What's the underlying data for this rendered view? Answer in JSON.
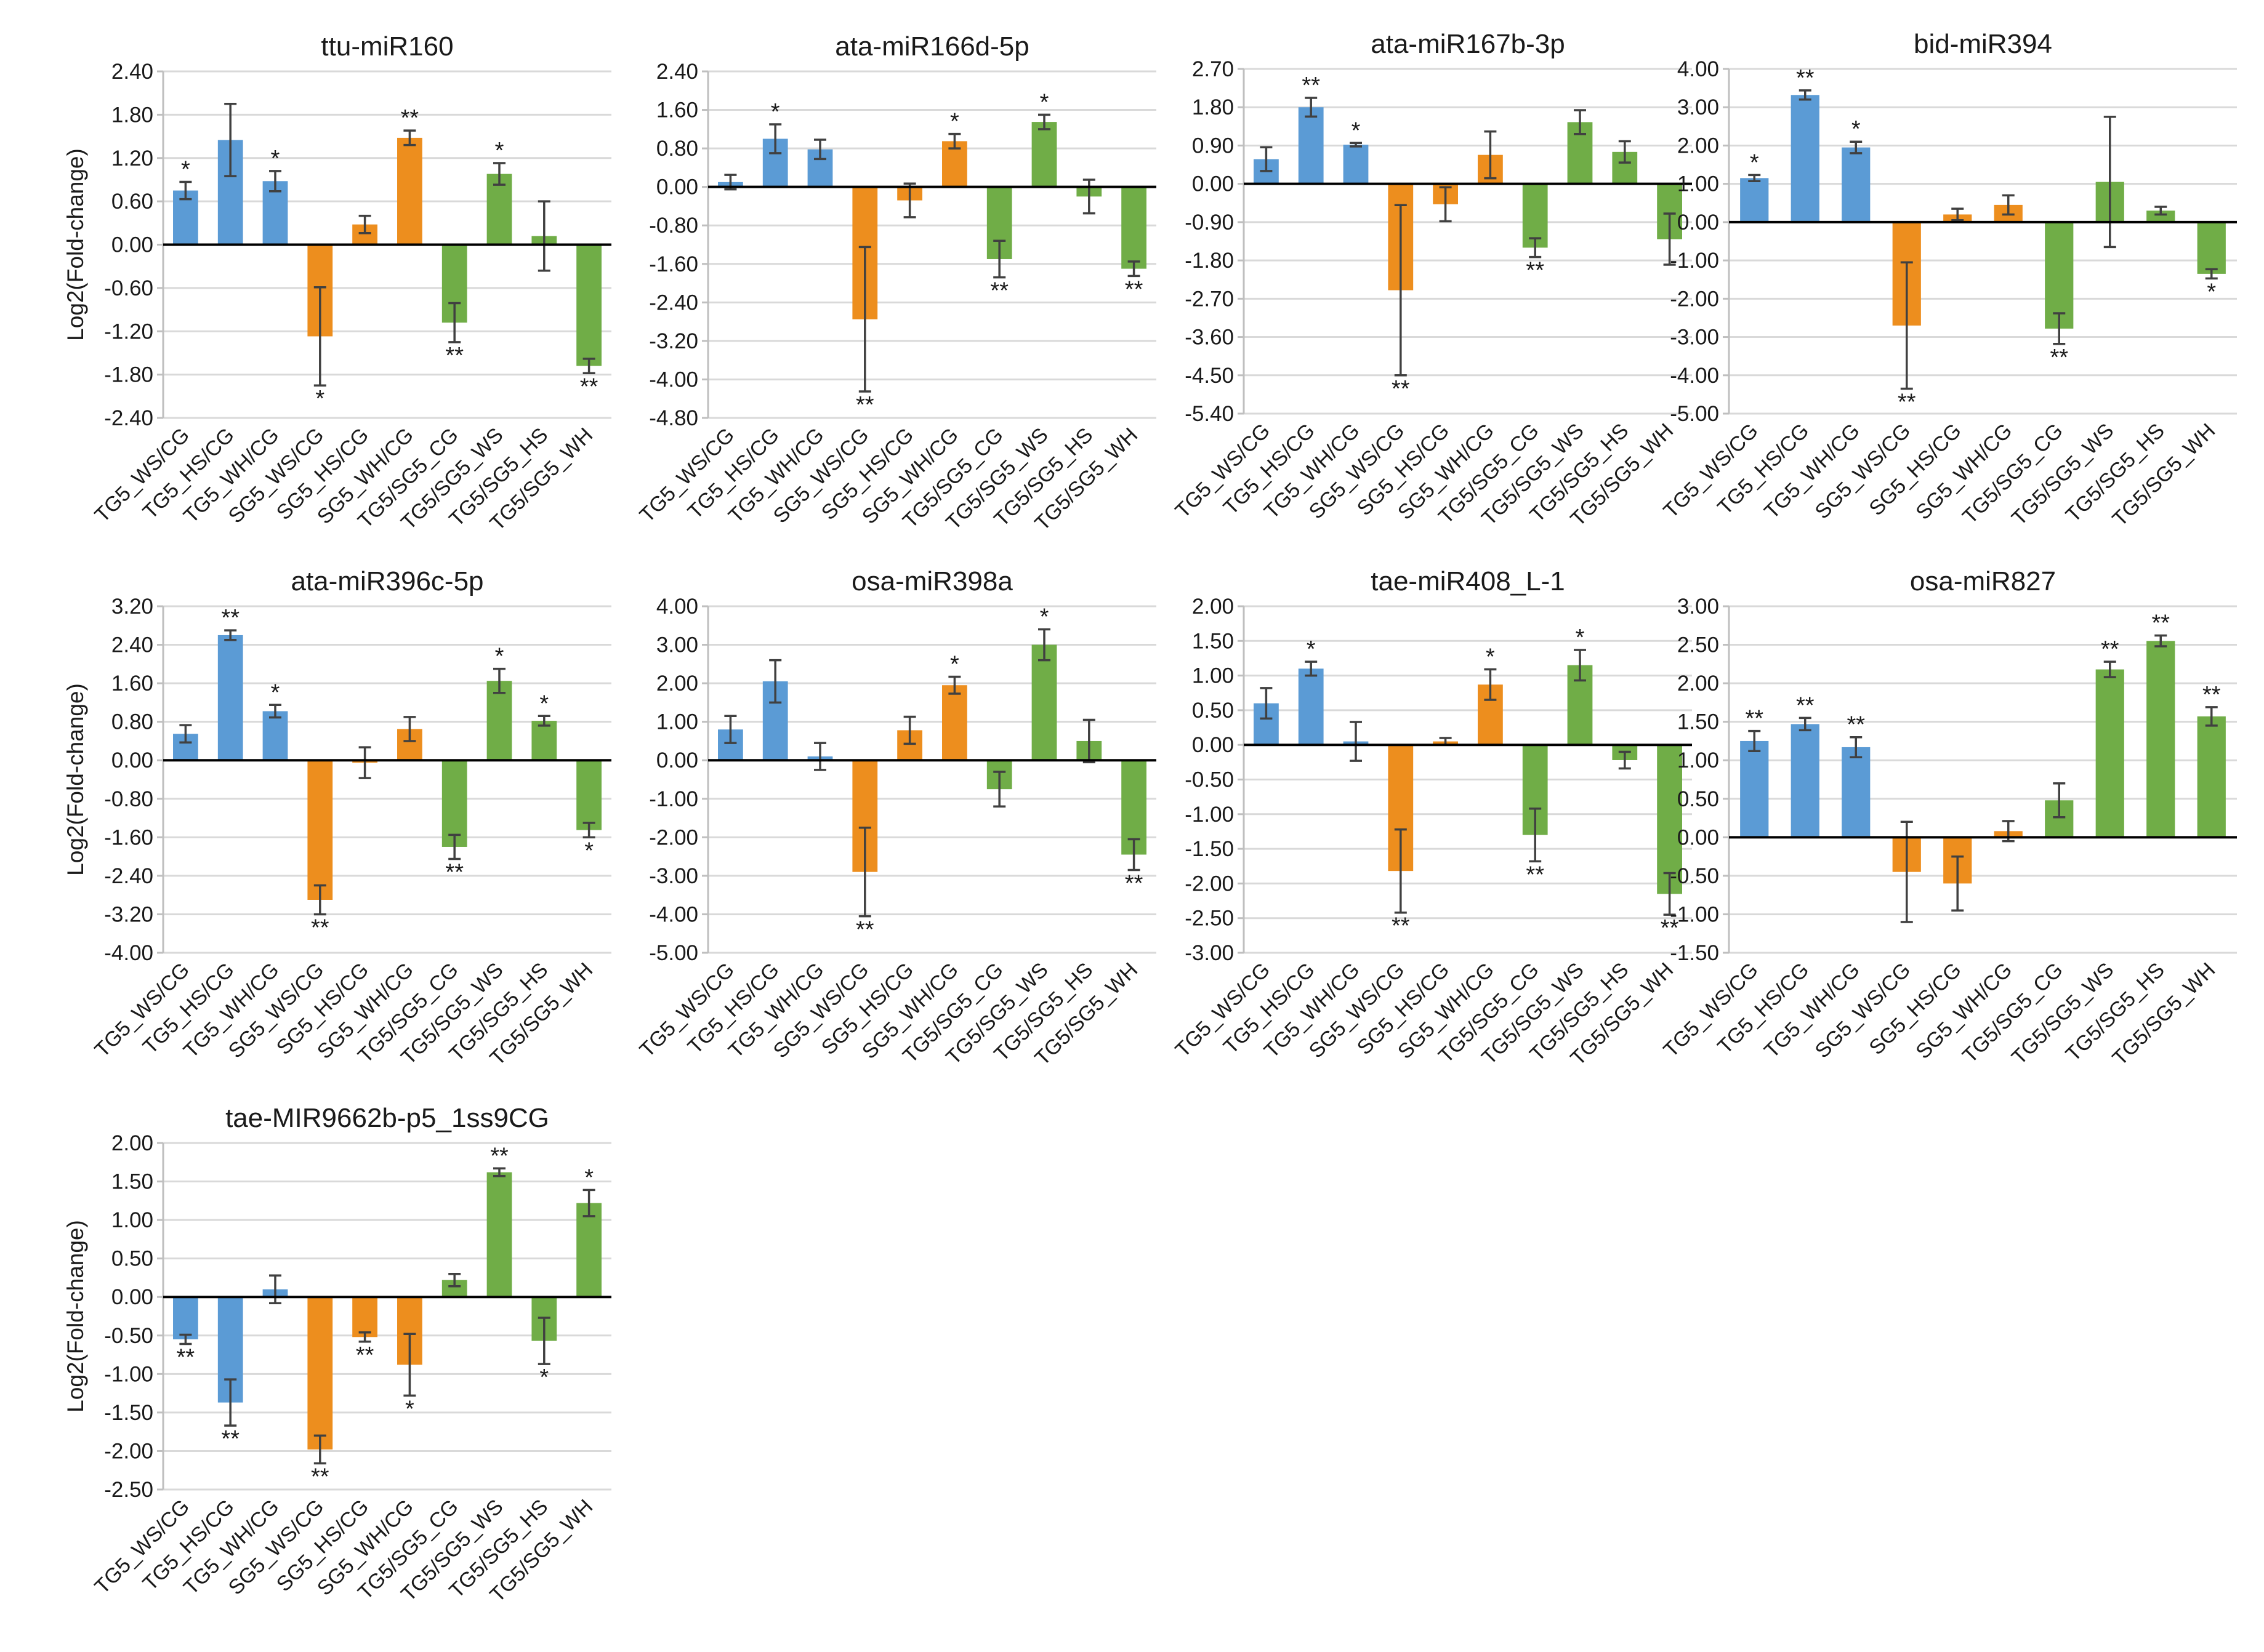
{
  "figure": {
    "colors": {
      "blue": "#5B9BD5",
      "orange": "#ED8E1E",
      "green": "#70AD47",
      "grid": "#D9D9D9",
      "axis": "#000000",
      "text": "#1a1a1a"
    }
  },
  "chart_data": [
    {
      "type": "bar",
      "title": "ttu-miR160",
      "ylabel": "Log2(Fold-change)",
      "ylim": [
        -2.4,
        2.4
      ],
      "yticks": [
        "2.40",
        "1.80",
        "1.20",
        "0.60",
        "0.00",
        "-0.60",
        "-1.20",
        "-1.80",
        "-2.40"
      ],
      "categories": [
        "TG5_WS/CG",
        "TG5_HS/CG",
        "TG5_WH/CG",
        "SG5_WS/CG",
        "SG5_HS/CG",
        "SG5_WH/CG",
        "TG5/SG5_CG",
        "TG5/SG5_WS",
        "TG5/SG5_HS",
        "TG5/SG5_WH"
      ],
      "colors": [
        "blue",
        "blue",
        "blue",
        "orange",
        "orange",
        "orange",
        "green",
        "green",
        "green",
        "green"
      ],
      "values": [
        0.75,
        1.45,
        0.88,
        -1.27,
        0.28,
        1.48,
        -1.08,
        0.98,
        0.12,
        -1.68
      ],
      "errors": [
        0.12,
        0.5,
        0.14,
        0.68,
        0.12,
        0.1,
        0.27,
        0.15,
        0.48,
        0.1
      ],
      "significance": [
        "*",
        "",
        "*",
        "*",
        "",
        "**",
        "**",
        "*",
        "",
        "**"
      ]
    },
    {
      "type": "bar",
      "title": "ata-miR166d-5p",
      "ylabel": "",
      "ylim": [
        -4.8,
        2.4
      ],
      "yticks": [
        "2.40",
        "1.60",
        "0.80",
        "0.00",
        "-0.80",
        "-1.60",
        "-2.40",
        "-3.20",
        "-4.00",
        "-4.80"
      ],
      "categories": [
        "TG5_WS/CG",
        "TG5_HS/CG",
        "TG5_WH/CG",
        "SG5_WS/CG",
        "SG5_HS/CG",
        "SG5_WH/CG",
        "TG5/SG5_CG",
        "TG5/SG5_WS",
        "TG5/SG5_HS",
        "TG5/SG5_WH"
      ],
      "colors": [
        "blue",
        "blue",
        "blue",
        "orange",
        "orange",
        "orange",
        "green",
        "green",
        "green",
        "green"
      ],
      "values": [
        0.1,
        1.0,
        0.78,
        -2.75,
        -0.28,
        0.95,
        -1.5,
        1.35,
        -0.2,
        -1.7
      ],
      "errors": [
        0.15,
        0.3,
        0.2,
        1.5,
        0.35,
        0.15,
        0.38,
        0.15,
        0.35,
        0.15
      ],
      "significance": [
        "",
        "*",
        "",
        "**",
        "",
        "*",
        "**",
        "*",
        "",
        "**"
      ]
    },
    {
      "type": "bar",
      "title": "ata-miR167b-3p",
      "ylabel": "",
      "ylim": [
        -5.4,
        2.7
      ],
      "yticks": [
        "2.70",
        "1.80",
        "0.90",
        "0.00",
        "-0.90",
        "-1.80",
        "-2.70",
        "-3.60",
        "-4.50",
        "-5.40"
      ],
      "categories": [
        "TG5_WS/CG",
        "TG5_HS/CG",
        "TG5_WH/CG",
        "SG5_WS/CG",
        "SG5_HS/CG",
        "SG5_WH/CG",
        "TG5/SG5_CG",
        "TG5/SG5_WS",
        "TG5/SG5_HS",
        "TG5/SG5_WH"
      ],
      "colors": [
        "blue",
        "blue",
        "blue",
        "orange",
        "orange",
        "orange",
        "green",
        "green",
        "green",
        "green"
      ],
      "values": [
        0.58,
        1.8,
        0.92,
        -2.5,
        -0.48,
        0.68,
        -1.5,
        1.45,
        0.75,
        -1.3
      ],
      "errors": [
        0.28,
        0.22,
        0.04,
        2.0,
        0.4,
        0.55,
        0.22,
        0.28,
        0.25,
        0.6
      ],
      "significance": [
        "",
        "**",
        "*",
        "**",
        "",
        "",
        "**",
        "",
        "",
        ""
      ]
    },
    {
      "type": "bar",
      "title": "bid-miR394",
      "ylabel": "",
      "ylim": [
        -5.0,
        4.0
      ],
      "yticks": [
        "4.00",
        "3.00",
        "2.00",
        "1.00",
        "0.00",
        "-1.00",
        "-2.00",
        "-3.00",
        "-4.00",
        "-5.00"
      ],
      "categories": [
        "TG5_WS/CG",
        "TG5_HS/CG",
        "TG5_WH/CG",
        "SG5_WS/CG",
        "SG5_HS/CG",
        "SG5_WH/CG",
        "TG5/SG5_CG",
        "TG5/SG5_WS",
        "TG5/SG5_HS",
        "TG5/SG5_WH"
      ],
      "colors": [
        "blue",
        "blue",
        "blue",
        "orange",
        "orange",
        "orange",
        "green",
        "green",
        "green",
        "green"
      ],
      "values": [
        1.15,
        3.32,
        1.95,
        -2.7,
        0.2,
        0.45,
        -2.78,
        1.05,
        0.3,
        -1.35
      ],
      "errors": [
        0.08,
        0.12,
        0.15,
        1.65,
        0.15,
        0.25,
        0.4,
        1.7,
        0.1,
        0.12
      ],
      "significance": [
        "*",
        "**",
        "*",
        "**",
        "",
        "",
        "**",
        "",
        "",
        "*"
      ]
    },
    {
      "type": "bar",
      "title": "ata-miR396c-5p",
      "ylabel": "Log2(Fold-change)",
      "ylim": [
        -4.0,
        3.2
      ],
      "yticks": [
        "3.20",
        "2.40",
        "1.60",
        "0.80",
        "0.00",
        "-0.80",
        "-1.60",
        "-2.40",
        "-3.20",
        "-4.00"
      ],
      "categories": [
        "TG5_WS/CG",
        "TG5_HS/CG",
        "TG5_WH/CG",
        "SG5_WS/CG",
        "SG5_HS/CG",
        "SG5_WH/CG",
        "TG5/SG5_CG",
        "TG5/SG5_WS",
        "TG5/SG5_HS",
        "TG5/SG5_WH"
      ],
      "colors": [
        "blue",
        "blue",
        "blue",
        "orange",
        "orange",
        "orange",
        "green",
        "green",
        "green",
        "green"
      ],
      "values": [
        0.55,
        2.6,
        1.02,
        -2.9,
        -0.05,
        0.65,
        -1.8,
        1.65,
        0.82,
        -1.45
      ],
      "errors": [
        0.18,
        0.1,
        0.13,
        0.3,
        0.32,
        0.25,
        0.25,
        0.25,
        0.1,
        0.15
      ],
      "significance": [
        "",
        "**",
        "*",
        "**",
        "",
        "",
        "**",
        "*",
        "*",
        "*"
      ]
    },
    {
      "type": "bar",
      "title": "osa-miR398a",
      "ylabel": "",
      "ylim": [
        -5.0,
        4.0
      ],
      "yticks": [
        "4.00",
        "3.00",
        "2.00",
        "1.00",
        "0.00",
        "-1.00",
        "-2.00",
        "-3.00",
        "-4.00",
        "-5.00"
      ],
      "categories": [
        "TG5_WS/CG",
        "TG5_HS/CG",
        "TG5_WH/CG",
        "SG5_WS/CG",
        "SG5_HS/CG",
        "SG5_WH/CG",
        "TG5/SG5_CG",
        "TG5/SG5_WS",
        "TG5/SG5_HS",
        "TG5/SG5_WH"
      ],
      "colors": [
        "blue",
        "blue",
        "blue",
        "orange",
        "orange",
        "orange",
        "green",
        "green",
        "green",
        "green"
      ],
      "values": [
        0.8,
        2.05,
        0.1,
        -2.9,
        0.78,
        1.95,
        -0.75,
        3.0,
        0.5,
        -2.45
      ],
      "errors": [
        0.35,
        0.55,
        0.35,
        1.15,
        0.35,
        0.22,
        0.45,
        0.4,
        0.55,
        0.4
      ],
      "significance": [
        "",
        "",
        "",
        "**",
        "",
        "*",
        "",
        "*",
        "",
        "**"
      ]
    },
    {
      "type": "bar",
      "title": "tae-miR408_L-1",
      "ylabel": "",
      "ylim": [
        -3.0,
        2.0
      ],
      "yticks": [
        "2.00",
        "1.50",
        "1.00",
        "0.50",
        "0.00",
        "-0.50",
        "-1.00",
        "-1.50",
        "-2.00",
        "-2.50",
        "-3.00"
      ],
      "categories": [
        "TG5_WS/CG",
        "TG5_HS/CG",
        "TG5_WH/CG",
        "SG5_WS/CG",
        "SG5_HS/CG",
        "SG5_WH/CG",
        "TG5/SG5_CG",
        "TG5/SG5_WS",
        "TG5/SG5_HS",
        "TG5/SG5_WH"
      ],
      "colors": [
        "blue",
        "blue",
        "blue",
        "orange",
        "orange",
        "orange",
        "green",
        "green",
        "green",
        "green"
      ],
      "values": [
        0.6,
        1.1,
        0.05,
        -1.82,
        0.05,
        0.87,
        -1.3,
        1.15,
        -0.22,
        -2.15
      ],
      "errors": [
        0.22,
        0.1,
        0.28,
        0.6,
        0.05,
        0.22,
        0.38,
        0.22,
        0.12,
        0.3
      ],
      "significance": [
        "",
        "*",
        "",
        "**",
        "",
        "*",
        "**",
        "*",
        "",
        "**"
      ]
    },
    {
      "type": "bar",
      "title": "osa-miR827",
      "ylabel": "",
      "ylim": [
        -1.5,
        3.0
      ],
      "yticks": [
        "3.00",
        "2.50",
        "2.00",
        "1.50",
        "1.00",
        "0.50",
        "0.00",
        "-0.50",
        "-1.00",
        "-1.50"
      ],
      "categories": [
        "TG5_WS/CG",
        "TG5_HS/CG",
        "TG5_WH/CG",
        "SG5_WS/CG",
        "SG5_HS/CG",
        "SG5_WH/CG",
        "TG5/SG5_CG",
        "TG5/SG5_WS",
        "TG5/SG5_HS",
        "TG5/SG5_WH"
      ],
      "colors": [
        "blue",
        "blue",
        "blue",
        "orange",
        "orange",
        "orange",
        "green",
        "green",
        "green",
        "green"
      ],
      "values": [
        1.25,
        1.47,
        1.17,
        -0.45,
        -0.6,
        0.08,
        0.48,
        2.18,
        2.55,
        1.57
      ],
      "errors": [
        0.13,
        0.08,
        0.13,
        0.65,
        0.35,
        0.13,
        0.22,
        0.1,
        0.07,
        0.12
      ],
      "significance": [
        "**",
        "**",
        "**",
        "",
        "",
        "",
        "",
        "**",
        "**",
        "**"
      ]
    },
    {
      "type": "bar",
      "title": "tae-MIR9662b-p5_1ss9CG",
      "ylabel": "Log2(Fold-change)",
      "ylim": [
        -2.5,
        2.0
      ],
      "yticks": [
        "2.00",
        "1.50",
        "1.00",
        "0.50",
        "0.00",
        "-0.50",
        "-1.00",
        "-1.50",
        "-2.00",
        "-2.50"
      ],
      "categories": [
        "TG5_WS/CG",
        "TG5_HS/CG",
        "TG5_WH/CG",
        "SG5_WS/CG",
        "SG5_HS/CG",
        "SG5_WH/CG",
        "TG5/SG5_CG",
        "TG5/SG5_WS",
        "TG5/SG5_HS",
        "TG5/SG5_WH"
      ],
      "colors": [
        "blue",
        "blue",
        "blue",
        "orange",
        "orange",
        "orange",
        "green",
        "green",
        "green",
        "green"
      ],
      "values": [
        -0.55,
        -1.37,
        0.1,
        -1.98,
        -0.52,
        -0.88,
        0.22,
        1.62,
        -0.57,
        1.22
      ],
      "errors": [
        0.06,
        0.3,
        0.18,
        0.18,
        0.06,
        0.4,
        0.08,
        0.05,
        0.3,
        0.17
      ],
      "significance": [
        "**",
        "**",
        "",
        "**",
        "**",
        "*",
        "",
        "**",
        "*",
        "*"
      ]
    }
  ]
}
